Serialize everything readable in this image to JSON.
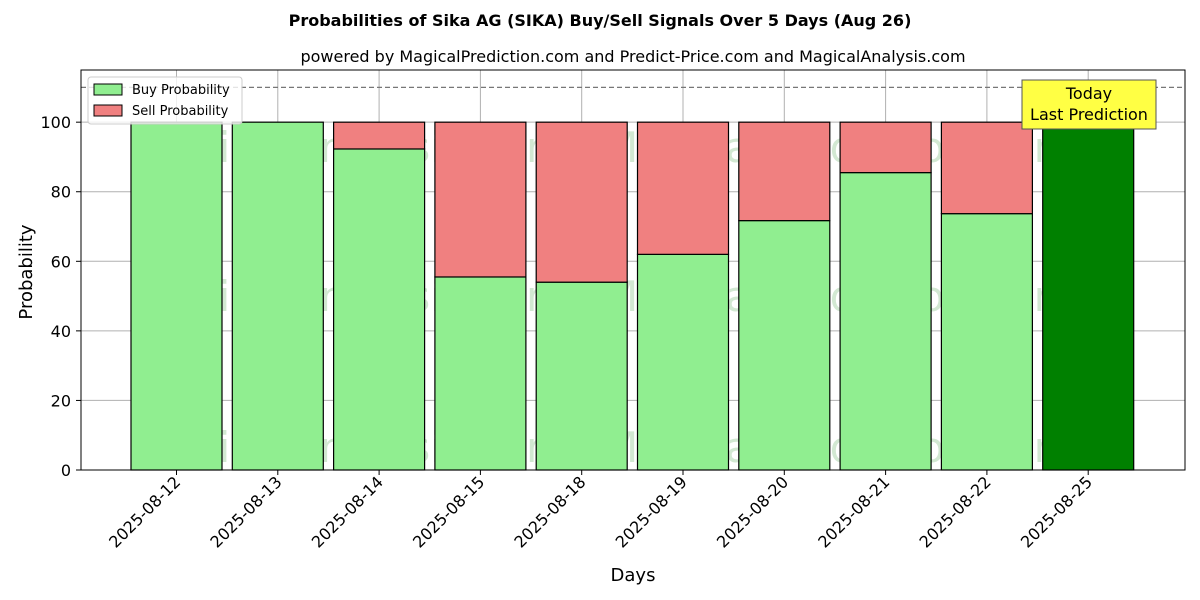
{
  "chart_data": {
    "type": "bar",
    "stacked": true,
    "title": "Probabilities of Sika AG (SIKA) Buy/Sell Signals Over 5 Days (Aug 26)",
    "subtitle": "powered by MagicalPrediction.com and Predict-Price.com and MagicalAnalysis.com",
    "xlabel": "Days",
    "ylabel": "Probability",
    "ylim": [
      0,
      115
    ],
    "yticks": [
      0,
      20,
      40,
      60,
      80,
      100
    ],
    "reference_line": 110,
    "grid": true,
    "legend_position": "top-left",
    "categories": [
      "2025-08-12",
      "2025-08-13",
      "2025-08-14",
      "2025-08-15",
      "2025-08-18",
      "2025-08-19",
      "2025-08-20",
      "2025-08-21",
      "2025-08-22",
      "2025-08-25"
    ],
    "series": [
      {
        "name": "Buy Probability",
        "color": "#90ee90",
        "values": [
          100,
          100,
          92.3,
          55.5,
          54,
          62,
          71.7,
          85.5,
          73.7,
          100
        ]
      },
      {
        "name": "Sell Probability",
        "color": "#f08080",
        "values": [
          0,
          0,
          7.7,
          44.5,
          46,
          38,
          28.3,
          14.5,
          26.3,
          0
        ]
      }
    ],
    "highlight": {
      "category": "2025-08-25",
      "color": "#008000",
      "label_lines": [
        "Today",
        "Last Prediction"
      ],
      "box_color": "#ffff44"
    },
    "watermarks": [
      "MagicalAnalysis.com",
      "MagicalPrediction.com"
    ]
  }
}
